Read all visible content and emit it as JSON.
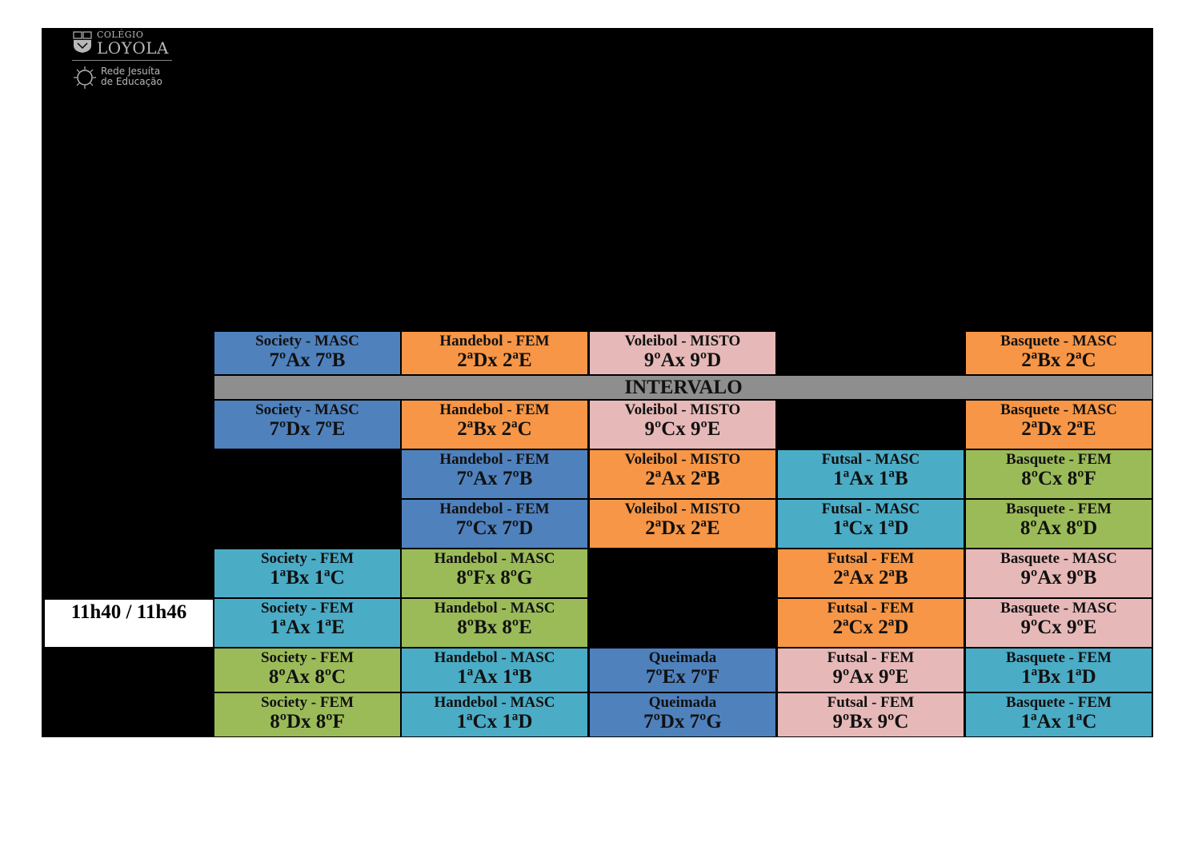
{
  "logo": {
    "line1": "COLÉGIO",
    "line2": "LOYOLA",
    "line3": "Rede Jesuíta",
    "line4": "de Educação"
  },
  "colors": {
    "blue": "#4f81bd",
    "orange": "#f79646",
    "pink": "#e6b9b8",
    "teal": "#4bacc6",
    "green": "#9bbb59",
    "gray": "#8e8e8e",
    "background": "#000000"
  },
  "intervalo": "INTERVALO",
  "time_label": "11h40 / 11h46",
  "rows": [
    {
      "cells": [
        {
          "sport": "Society - MASC",
          "match": "7ºAx 7ºB",
          "color": "blue"
        },
        {
          "sport": "Handebol - FEM",
          "match": "2ªDx 2ªE",
          "color": "orange"
        },
        {
          "sport": "Voleibol - MISTO",
          "match": "9ºAx 9ºD",
          "color": "pink"
        },
        null,
        {
          "sport": "Basquete - MASC",
          "match": "2ªBx 2ªC",
          "color": "orange"
        }
      ]
    },
    {
      "cells": [
        {
          "sport": "Society - MASC",
          "match": "7ºDx 7ºE",
          "color": "blue"
        },
        {
          "sport": "Handebol - FEM",
          "match": "2ªBx 2ªC",
          "color": "orange"
        },
        {
          "sport": "Voleibol - MISTO",
          "match": "9ºCx 9ºE",
          "color": "pink"
        },
        null,
        {
          "sport": "Basquete - MASC",
          "match": "2ªDx 2ªE",
          "color": "orange"
        }
      ]
    },
    {
      "cells": [
        null,
        {
          "sport": "Handebol - FEM",
          "match": "7ºAx 7ºB",
          "color": "blue"
        },
        {
          "sport": "Voleibol - MISTO",
          "match": "2ªAx 2ªB",
          "color": "orange"
        },
        {
          "sport": "Futsal - MASC",
          "match": "1ªAx 1ªB",
          "color": "teal"
        },
        {
          "sport": "Basquete - FEM",
          "match": "8ºCx 8ºF",
          "color": "green"
        }
      ]
    },
    {
      "cells": [
        null,
        {
          "sport": "Handebol - FEM",
          "match": "7ºCx 7ºD",
          "color": "blue"
        },
        {
          "sport": "Voleibol - MISTO",
          "match": "2ªDx 2ªE",
          "color": "orange"
        },
        {
          "sport": "Futsal - MASC",
          "match": "1ªCx 1ªD",
          "color": "teal"
        },
        {
          "sport": "Basquete - FEM",
          "match": "8ºAx 8ºD",
          "color": "green"
        }
      ]
    },
    {
      "cells": [
        {
          "sport": "Society - FEM",
          "match": "1ªBx 1ªC",
          "color": "teal"
        },
        {
          "sport": "Handebol - MASC",
          "match": "8ºFx 8ºG",
          "color": "green"
        },
        null,
        {
          "sport": "Futsal - FEM",
          "match": "2ªAx 2ªB",
          "color": "orange"
        },
        {
          "sport": "Basquete - MASC",
          "match": "9ºAx 9ºB",
          "color": "pink"
        }
      ]
    },
    {
      "cells": [
        {
          "sport": "Society - FEM",
          "match": "1ªAx 1ªE",
          "color": "teal"
        },
        {
          "sport": "Handebol - MASC",
          "match": "8ºBx 8ºE",
          "color": "green"
        },
        null,
        {
          "sport": "Futsal - FEM",
          "match": "2ªCx 2ªD",
          "color": "orange"
        },
        {
          "sport": "Basquete - MASC",
          "match": "9ºCx 9ºE",
          "color": "pink"
        }
      ]
    },
    {
      "cells": [
        {
          "sport": "Society - FEM",
          "match": "8ºAx 8ºC",
          "color": "green"
        },
        {
          "sport": "Handebol - MASC",
          "match": "1ªAx 1ªB",
          "color": "teal"
        },
        {
          "sport": "Queimada",
          "match": "7ºEx 7ºF",
          "color": "blue"
        },
        {
          "sport": "Futsal - FEM",
          "match": "9ºAx 9ºE",
          "color": "pink"
        },
        {
          "sport": "Basquete - FEM",
          "match": "1ªBx 1ªD",
          "color": "teal"
        }
      ]
    },
    {
      "cells": [
        {
          "sport": "Society - FEM",
          "match": "8ºDx 8ºF",
          "color": "green"
        },
        {
          "sport": "Handebol - MASC",
          "match": "1ªCx 1ªD",
          "color": "teal"
        },
        {
          "sport": "Queimada",
          "match": "7ºDx 7ºG",
          "color": "blue"
        },
        {
          "sport": "Futsal - FEM",
          "match": "9ºBx 9ºC",
          "color": "pink"
        },
        {
          "sport": "Basquete - FEM",
          "match": "1ªAx 1ªC",
          "color": "teal"
        }
      ]
    }
  ]
}
